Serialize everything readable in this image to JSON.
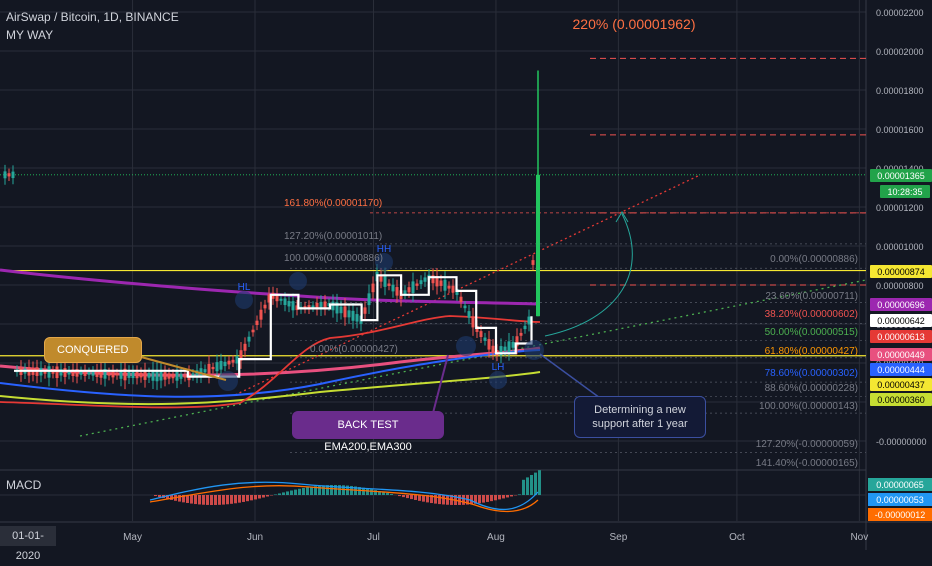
{
  "header": {
    "title": "AirSwap / Bitcoin, 1D, BINANCE",
    "subtitle": "MY WAY"
  },
  "colors": {
    "bg": "#131722",
    "grid": "#2a2e39",
    "axis_text": "#b2b5be",
    "candle_up": "#26a69a",
    "candle_down": "#ef5350",
    "spike": "#22c55e",
    "ema_red": "#e53935",
    "ema_purple": "#9c27b0",
    "ema_pink": "#e8507f",
    "ema_blue": "#2962ff",
    "ema_yellow": "#c6dd33",
    "fib_orange": "#ff7043",
    "yellow_line": "#f5e732",
    "white_line": "#ffffff"
  },
  "y_axis_labels": [
    "0.00002200",
    "0.00002000",
    "0.00001800",
    "0.00001600",
    "0.00001400",
    "0.00001200",
    "0.00001000",
    "0.00000800",
    "0.00000600",
    "0.00000400",
    "0.00000200",
    "-0.00000000"
  ],
  "x_axis_labels": [
    "May",
    "Jun",
    "Jul",
    "Aug",
    "Sep",
    "Oct",
    "Nov"
  ],
  "price_tags": [
    {
      "text": "0.00001365",
      "bg": "#22a34a",
      "fg": "#ffffff"
    },
    {
      "text": "10:28:35",
      "bg": "#22a34a",
      "fg": "#ffffff"
    },
    {
      "text": "0.00000874",
      "bg": "#f5e732",
      "fg": "#000000"
    },
    {
      "text": "0.00000696",
      "bg": "#9c27b0",
      "fg": "#ffffff"
    },
    {
      "text": "0.00000642",
      "bg": "#ffffff",
      "fg": "#000000"
    },
    {
      "text": "0.00000613",
      "bg": "#e53935",
      "fg": "#ffffff"
    },
    {
      "text": "0.00000449",
      "bg": "#e8507f",
      "fg": "#ffffff"
    },
    {
      "text": "0.00000444",
      "bg": "#2962ff",
      "fg": "#ffffff"
    },
    {
      "text": "0.00000437",
      "bg": "#f5e732",
      "fg": "#000000"
    },
    {
      "text": "0.00000360",
      "bg": "#c6dd33",
      "fg": "#000000"
    }
  ],
  "macd_tags": [
    {
      "text": "0.00000065",
      "bg": "#26a69a",
      "fg": "#ffffff"
    },
    {
      "text": "0.00000053",
      "bg": "#2196f3",
      "fg": "#ffffff"
    },
    {
      "text": "-0.00000012",
      "bg": "#ff6d00",
      "fg": "#ffffff"
    }
  ],
  "annotations": {
    "target_pct": "220% (0.00001962)",
    "fib_ext": [
      {
        "text": "161.80%(0.00001170)",
        "color": "#ff7043"
      },
      {
        "text": "127.20%(0.00001011)",
        "color": "#787b86"
      },
      {
        "text": "100.00%(0.00000886)",
        "color": "#787b86"
      },
      {
        "text": "0.00%(0.00000427)",
        "color": "#787b86"
      }
    ],
    "fib_ret": [
      {
        "text": "0.00%(0.00000886)",
        "color": "#787b86"
      },
      {
        "text": "23.60%(0.00000711)",
        "color": "#787b86"
      },
      {
        "text": "38.20%(0.00000602)",
        "color": "#ef5350"
      },
      {
        "text": "50.00%(0.00000515)",
        "color": "#4caf50"
      },
      {
        "text": "61.80%(0.00000427)",
        "color": "#ff9800"
      },
      {
        "text": "78.60%(0.00000302)",
        "color": "#2962ff"
      },
      {
        "text": "88.60%(0.00000228)",
        "color": "#787b86"
      },
      {
        "text": "100.00%(0.00000143)",
        "color": "#787b86"
      },
      {
        "text": "127.20%(-0.00000059)",
        "color": "#787b86"
      },
      {
        "text": "141.40%(-0.00000165)",
        "color": "#787b86"
      }
    ],
    "swing_labels": [
      "HL",
      "HH",
      "LH"
    ],
    "conquered": "CONQUERED",
    "back_test": "BACK TEST EMA200,EMA300",
    "determining": "Determining a new support after 1 year",
    "macd_label": "MACD",
    "date_box": "01-01-2020"
  },
  "chart_data": {
    "type": "line",
    "title": "AirSwap / Bitcoin, 1D, BINANCE",
    "ylim": [
      -2e-07,
      2.2e-06
    ],
    "series": [
      {
        "name": "",
        "x": [
          "2020-04-01",
          "2020-05-15",
          "2020-05-28",
          "2020-06-05",
          "2020-06-12",
          "2020-06-20",
          "2020-06-28",
          "2020-07-02",
          "2020-07-08",
          "2020-07-15",
          "2020-07-22",
          "2020-07-27",
          "2020-08-01",
          "2020-08-06",
          "2020-08-10",
          "2020-08-11"
        ],
        "values": [
          3.6e-06,
          3.3e-06,
          4.2e-06,
          7.5e-06,
          6.8e-06,
          7e-06,
          6.2e-06,
          8.5e-06,
          7.5e-06,
          8.4e-06,
          7.7e-06,
          5.8e-06,
          4.5e-06,
          5e-06,
          6.4e-06,
          1.365e-05
        ]
      }
    ],
    "ema_lines": [
      "EMA red",
      "EMA purple",
      "EMA pink",
      "EMA blue",
      "EMA yellow"
    ],
    "grid": true,
    "legend": "none"
  }
}
